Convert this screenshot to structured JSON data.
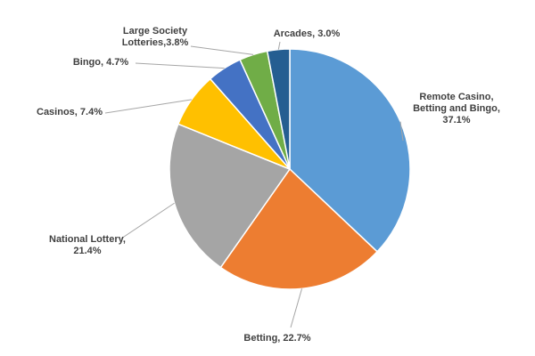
{
  "chart_data": {
    "type": "pie",
    "title": "",
    "start_angle_deg": 0,
    "direction": "clockwise",
    "slices": [
      {
        "lines": [
          "Remote Casino,",
          "Betting and Bingo,",
          "37.1%"
        ],
        "value": 37.1,
        "color": "#5b9bd5"
      },
      {
        "lines": [
          "Betting, 22.7%"
        ],
        "value": 22.7,
        "color": "#ed7d31"
      },
      {
        "lines": [
          "National Lottery,",
          "21.4%"
        ],
        "value": 21.4,
        "color": "#a5a5a5"
      },
      {
        "lines": [
          "Casinos, 7.4%"
        ],
        "value": 7.4,
        "color": "#ffc000"
      },
      {
        "lines": [
          "Bingo, 4.7%"
        ],
        "value": 4.7,
        "color": "#4472c4"
      },
      {
        "lines": [
          "Large Society",
          "Lotteries,3.8%"
        ],
        "value": 3.8,
        "color": "#70ad47"
      },
      {
        "lines": [
          "Arcades, 3.0%"
        ],
        "value": 3.0,
        "color": "#255e91"
      }
    ]
  }
}
